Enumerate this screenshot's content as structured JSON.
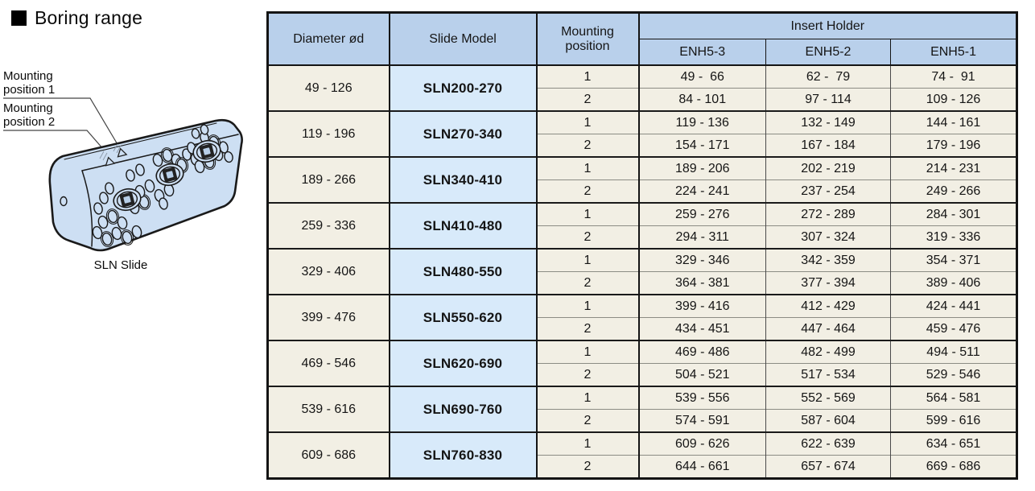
{
  "page": {
    "title": "Boring range"
  },
  "illustration": {
    "caption": "SLN Slide",
    "labels": [
      {
        "line1": "Mounting",
        "line2": "position 1"
      },
      {
        "line1": "Mounting",
        "line2": "position 2"
      }
    ]
  },
  "table": {
    "headers": {
      "diameter": "Diameter ød",
      "slide_model": "Slide Model",
      "mounting_position": "Mounting position",
      "insert_holder": "Insert Holder",
      "enh_columns": [
        "ENH5-3",
        "ENH5-2",
        "ENH5-1"
      ]
    },
    "rows": [
      {
        "diameter": "49 - 126",
        "model": "SLN200-270",
        "positions": [
          {
            "position": "1",
            "enh5_3": "49 -  66",
            "enh5_2": "62 -  79",
            "enh5_1": "74 -  91"
          },
          {
            "position": "2",
            "enh5_3": "84 - 101",
            "enh5_2": "97 - 114",
            "enh5_1": "109 - 126"
          }
        ]
      },
      {
        "diameter": "119 - 196",
        "model": "SLN270-340",
        "positions": [
          {
            "position": "1",
            "enh5_3": "119 - 136",
            "enh5_2": "132 - 149",
            "enh5_1": "144 - 161"
          },
          {
            "position": "2",
            "enh5_3": "154 - 171",
            "enh5_2": "167 - 184",
            "enh5_1": "179 - 196"
          }
        ]
      },
      {
        "diameter": "189 - 266",
        "model": "SLN340-410",
        "positions": [
          {
            "position": "1",
            "enh5_3": "189 - 206",
            "enh5_2": "202 - 219",
            "enh5_1": "214 - 231"
          },
          {
            "position": "2",
            "enh5_3": "224 - 241",
            "enh5_2": "237 - 254",
            "enh5_1": "249 - 266"
          }
        ]
      },
      {
        "diameter": "259 - 336",
        "model": "SLN410-480",
        "positions": [
          {
            "position": "1",
            "enh5_3": "259 - 276",
            "enh5_2": "272 - 289",
            "enh5_1": "284 - 301"
          },
          {
            "position": "2",
            "enh5_3": "294 - 311",
            "enh5_2": "307 - 324",
            "enh5_1": "319 - 336"
          }
        ]
      },
      {
        "diameter": "329 - 406",
        "model": "SLN480-550",
        "positions": [
          {
            "position": "1",
            "enh5_3": "329 - 346",
            "enh5_2": "342 - 359",
            "enh5_1": "354 - 371"
          },
          {
            "position": "2",
            "enh5_3": "364 - 381",
            "enh5_2": "377 - 394",
            "enh5_1": "389 - 406"
          }
        ]
      },
      {
        "diameter": "399 - 476",
        "model": "SLN550-620",
        "positions": [
          {
            "position": "1",
            "enh5_3": "399 - 416",
            "enh5_2": "412 - 429",
            "enh5_1": "424 - 441"
          },
          {
            "position": "2",
            "enh5_3": "434 - 451",
            "enh5_2": "447 - 464",
            "enh5_1": "459 - 476"
          }
        ]
      },
      {
        "diameter": "469 - 546",
        "model": "SLN620-690",
        "positions": [
          {
            "position": "1",
            "enh5_3": "469 - 486",
            "enh5_2": "482 - 499",
            "enh5_1": "494 - 511"
          },
          {
            "position": "2",
            "enh5_3": "504 - 521",
            "enh5_2": "517 - 534",
            "enh5_1": "529 - 546"
          }
        ]
      },
      {
        "diameter": "539 - 616",
        "model": "SLN690-760",
        "positions": [
          {
            "position": "1",
            "enh5_3": "539 - 556",
            "enh5_2": "552 - 569",
            "enh5_1": "564 - 581"
          },
          {
            "position": "2",
            "enh5_3": "574 - 591",
            "enh5_2": "587 - 604",
            "enh5_1": "599 - 616"
          }
        ]
      },
      {
        "diameter": "609 - 686",
        "model": "SLN760-830",
        "positions": [
          {
            "position": "1",
            "enh5_3": "609 - 626",
            "enh5_2": "622 - 639",
            "enh5_1": "634 - 651"
          },
          {
            "position": "2",
            "enh5_3": "644 - 661",
            "enh5_2": "657 - 674",
            "enh5_1": "669 - 686"
          }
        ]
      }
    ]
  },
  "colors": {
    "header_bg": "#b9d0eb",
    "model_bg": "#d8eafa",
    "cell_bg": "#f2efe4",
    "grid_thin": "#8c8c84",
    "grid_thick": "#141414",
    "drawing_fill": "#cddff3",
    "text": "#111111"
  }
}
